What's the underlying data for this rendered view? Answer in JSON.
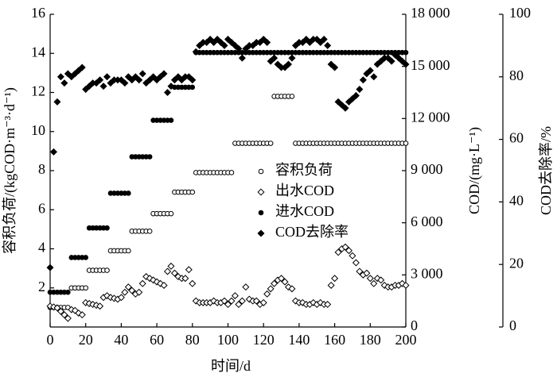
{
  "chart_data": {
    "type": "scatter",
    "xlabel": "时间/d",
    "ylabel": "容积负荷/(kgCOD·m⁻³·d⁻¹)",
    "y2label": "COD/(mg·L⁻¹)",
    "y3label": "COD去除率/%",
    "xlim": [
      0,
      200
    ],
    "xticks": [
      0,
      20,
      40,
      60,
      80,
      100,
      120,
      140,
      160,
      180,
      200
    ],
    "ylim": [
      0,
      16
    ],
    "yticks": [
      2,
      4,
      6,
      8,
      10,
      12,
      14,
      16
    ],
    "y2lim": [
      0,
      18000
    ],
    "y2ticks": [
      0,
      {
        "value": 3000,
        "label": "3 000"
      },
      {
        "value": 6000,
        "label": "6 000"
      },
      {
        "value": 9000,
        "label": "9 000"
      },
      {
        "value": 12000,
        "label": "12 000"
      },
      {
        "value": 15000,
        "label": "15 000"
      },
      {
        "value": 18000,
        "label": "18 000"
      }
    ],
    "y3lim": [
      0,
      100
    ],
    "y3ticks": [
      0,
      20,
      40,
      60,
      80,
      100
    ],
    "legend": "center",
    "x": [
      0,
      2,
      4,
      6,
      8,
      10,
      12,
      14,
      16,
      18,
      20,
      22,
      24,
      26,
      28,
      30,
      32,
      34,
      36,
      38,
      40,
      42,
      44,
      46,
      48,
      50,
      52,
      54,
      56,
      58,
      60,
      62,
      64,
      66,
      68,
      70,
      72,
      74,
      76,
      78,
      80,
      82,
      84,
      86,
      88,
      90,
      92,
      94,
      96,
      98,
      100,
      102,
      104,
      106,
      108,
      110,
      112,
      114,
      116,
      118,
      120,
      122,
      124,
      126,
      128,
      130,
      132,
      134,
      136,
      138,
      140,
      142,
      144,
      146,
      148,
      150,
      152,
      154,
      156,
      158,
      160,
      162,
      164,
      166,
      168,
      170,
      172,
      174,
      176,
      178,
      180,
      182,
      184,
      186,
      188,
      190,
      192,
      194,
      196,
      198,
      200
    ],
    "series": [
      {
        "name": "容积负荷",
        "marker": "circle-open",
        "color": "#000000",
        "axis": "y",
        "values": [
          1.0,
          1.0,
          1.0,
          1.0,
          1.0,
          1.0,
          2.0,
          2.0,
          2.0,
          2.0,
          2.0,
          2.9,
          2.9,
          2.9,
          2.9,
          2.9,
          2.9,
          3.9,
          3.9,
          3.9,
          3.9,
          3.9,
          3.9,
          4.9,
          4.9,
          4.9,
          4.9,
          4.9,
          4.9,
          5.8,
          5.8,
          5.8,
          5.8,
          5.8,
          5.8,
          6.9,
          6.9,
          6.9,
          6.9,
          6.9,
          6.9,
          7.9,
          7.9,
          7.9,
          7.9,
          7.9,
          7.9,
          7.9,
          7.9,
          7.9,
          7.9,
          7.9,
          9.4,
          9.4,
          9.4,
          9.4,
          9.4,
          9.4,
          9.4,
          9.4,
          9.4,
          9.4,
          9.4,
          11.8,
          11.8,
          11.8,
          11.8,
          11.8,
          11.8,
          9.4,
          9.4,
          9.4,
          9.4,
          9.4,
          9.4,
          9.4,
          9.4,
          9.4,
          9.4,
          9.4,
          9.4,
          9.4,
          9.4,
          9.4,
          9.4,
          9.4,
          9.4,
          9.4,
          9.4,
          9.4,
          9.4,
          9.4,
          9.4,
          9.4,
          9.4,
          9.4,
          9.4,
          9.4,
          9.4,
          9.4,
          9.4
        ]
      },
      {
        "name": "出水COD",
        "marker": "diamond-open",
        "color": "#000000",
        "axis": "y2",
        "values": [
          1200,
          1150,
          1100,
          900,
          700,
          500,
          1000,
          950,
          800,
          700,
          1400,
          1350,
          1300,
          1250,
          1200,
          1700,
          1800,
          1700,
          1650,
          1600,
          1700,
          2000,
          2300,
          2100,
          1900,
          2000,
          2500,
          2900,
          2800,
          2700,
          2600,
          2500,
          2400,
          3200,
          3500,
          3100,
          2900,
          2800,
          2800,
          3300,
          2500,
          1500,
          1400,
          1400,
          1400,
          1400,
          1500,
          1400,
          1400,
          1500,
          1300,
          1500,
          1800,
          1300,
          1500,
          2300,
          1600,
          1500,
          1500,
          1300,
          1400,
          1900,
          2200,
          2500,
          2700,
          2800,
          2600,
          2300,
          2200,
          1500,
          1400,
          1400,
          1300,
          1300,
          1400,
          1300,
          1400,
          1300,
          1300,
          2400,
          2800,
          4300,
          4500,
          4600,
          4400,
          4100,
          3700,
          3200,
          3000,
          3100,
          2800,
          2500,
          2800,
          2700,
          2400,
          2300,
          2300,
          2400,
          2400,
          2500,
          2400
        ]
      },
      {
        "name": "进水COD",
        "marker": "circle-filled",
        "color": "#000000",
        "axis": "y2",
        "values": [
          2000,
          2000,
          2000,
          2000,
          2000,
          2000,
          4000,
          4000,
          4000,
          4000,
          4000,
          5700,
          5700,
          5700,
          5700,
          5700,
          5700,
          7700,
          7700,
          7700,
          7700,
          7700,
          7700,
          9800,
          9800,
          9800,
          9800,
          9800,
          9800,
          11900,
          11900,
          11900,
          11900,
          11900,
          11900,
          13800,
          13800,
          13800,
          13800,
          13800,
          13800,
          15800,
          15800,
          15800,
          15800,
          15800,
          15800,
          15800,
          15800,
          15800,
          15800,
          15800,
          15800,
          15800,
          15800,
          15800,
          15800,
          15800,
          15800,
          15800,
          15800,
          15800,
          15800,
          15800,
          15800,
          15800,
          15800,
          15800,
          15800,
          15800,
          15800,
          15800,
          15800,
          15800,
          15800,
          15800,
          15800,
          15800,
          15800,
          15800,
          15800,
          15800,
          15800,
          15800,
          15800,
          15800,
          15800,
          15800,
          15800,
          15800,
          15800,
          15800,
          15800,
          15800,
          15800,
          15800,
          15800,
          15800,
          15800,
          15800,
          15800
        ]
      },
      {
        "name": "COD去除率",
        "marker": "diamond-filled",
        "color": "#000000",
        "axis": "y3",
        "values": [
          19,
          56,
          72,
          80,
          78,
          81,
          80,
          81,
          82,
          83,
          76,
          77,
          78,
          78,
          79,
          77,
          80,
          78,
          79,
          79,
          79,
          78,
          80,
          79,
          80,
          79,
          81,
          78,
          79,
          80,
          79,
          80,
          81,
          75,
          77,
          79,
          80,
          79,
          80,
          80,
          79,
          88,
          90,
          91,
          91,
          92,
          91,
          92,
          91,
          90,
          92,
          91,
          90,
          89,
          86,
          89,
          90,
          90,
          91,
          91,
          92,
          91,
          85,
          86,
          84,
          83,
          83,
          84,
          86,
          90,
          91,
          91,
          92,
          91,
          92,
          92,
          91,
          92,
          90,
          84,
          83,
          72,
          71,
          70,
          72,
          73,
          74,
          76,
          79,
          81,
          82,
          80,
          84,
          85,
          86,
          86,
          85,
          87,
          86,
          85,
          84
        ]
      }
    ]
  }
}
